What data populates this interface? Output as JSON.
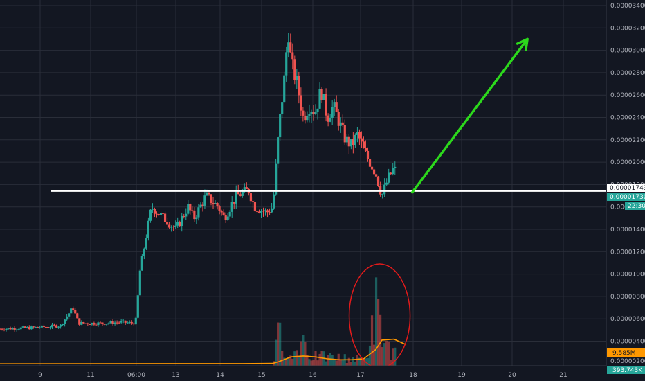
{
  "chart_data": {
    "type": "candlestick",
    "grid": true,
    "price_axis": {
      "position": "right",
      "ticks": [
        "0.00003400",
        "0.00003200",
        "0.00003000",
        "0.00002800",
        "0.00002600",
        "0.00002400",
        "0.00002200",
        "0.00002000",
        "0.00001800",
        "0.00001600",
        "0.00001400",
        "0.00001200",
        "0.00001000",
        "0.00000800",
        "0.00000600",
        "0.00000400"
      ]
    },
    "time_axis": {
      "ticks": [
        "9",
        "11",
        "06:00",
        "13",
        "14",
        "15",
        "16",
        "17",
        "18",
        "19",
        "20",
        "21"
      ]
    },
    "price_path": [
      [
        0,
        5.1e-06
      ],
      [
        0.05,
        5.2e-06
      ],
      [
        0.08,
        5.3e-06
      ],
      [
        0.1,
        5.4e-06
      ],
      [
        0.12,
        7e-06
      ],
      [
        0.13,
        5.6e-06
      ],
      [
        0.17,
        5.6e-06
      ],
      [
        0.2,
        5.7e-06
      ],
      [
        0.22,
        5.6e-06
      ],
      [
        0.225,
        6e-06
      ],
      [
        0.23,
        1e-05
      ],
      [
        0.24,
        1.3e-05
      ],
      [
        0.25,
        1.6e-05
      ],
      [
        0.27,
        1.5e-05
      ],
      [
        0.29,
        1.4e-05
      ],
      [
        0.31,
        1.6e-05
      ],
      [
        0.32,
        1.5e-05
      ],
      [
        0.34,
        1.7e-05
      ],
      [
        0.36,
        1.6e-05
      ],
      [
        0.37,
        1.5e-05
      ],
      [
        0.39,
        1.7e-05
      ],
      [
        0.41,
        1.75e-05
      ],
      [
        0.42,
        1.6e-05
      ],
      [
        0.44,
        1.55e-05
      ],
      [
        0.45,
        1.6e-05
      ],
      [
        0.46,
        2.3e-05
      ],
      [
        0.47,
        2.8e-05
      ],
      [
        0.475,
        3.2e-05
      ],
      [
        0.48,
        2.9e-05
      ],
      [
        0.49,
        2.7e-05
      ],
      [
        0.5,
        2.4e-05
      ],
      [
        0.51,
        2.5e-05
      ],
      [
        0.52,
        2.45e-05
      ],
      [
        0.53,
        2.65e-05
      ],
      [
        0.54,
        2.4e-05
      ],
      [
        0.55,
        2.5e-05
      ],
      [
        0.56,
        2.35e-05
      ],
      [
        0.57,
        2.2e-05
      ],
      [
        0.58,
        2.15e-05
      ],
      [
        0.59,
        2.25e-05
      ],
      [
        0.6,
        2.1e-05
      ],
      [
        0.61,
        2e-05
      ],
      [
        0.62,
        1.9e-05
      ],
      [
        0.63,
        1.7e-05
      ],
      [
        0.64,
        1.85e-05
      ],
      [
        0.65,
        1.95e-05
      ],
      [
        0.66,
        1.8e-05
      ],
      [
        0.67,
        1.75e-05
      ],
      [
        0.68,
        1.73e-05
      ]
    ],
    "volume_path": [
      [
        0,
        0.0
      ],
      [
        0.45,
        0.0
      ],
      [
        0.46,
        0.5
      ],
      [
        0.48,
        0.1
      ],
      [
        0.49,
        0.25
      ],
      [
        0.5,
        0.45
      ],
      [
        0.51,
        0.15
      ],
      [
        0.6,
        0.1
      ],
      [
        0.61,
        0.3
      ],
      [
        0.62,
        0.9
      ],
      [
        0.63,
        0.45
      ],
      [
        0.64,
        0.3
      ],
      [
        0.65,
        0.15
      ],
      [
        0.66,
        0.45
      ],
      [
        0.67,
        0.1
      ],
      [
        0.68,
        0.0
      ]
    ],
    "volume_ma_path": [
      [
        0,
        0.006
      ],
      [
        0.4,
        0.008
      ],
      [
        0.45,
        0.01
      ],
      [
        0.46,
        0.03
      ],
      [
        0.48,
        0.08
      ],
      [
        0.5,
        0.09
      ],
      [
        0.52,
        0.08
      ],
      [
        0.54,
        0.06
      ],
      [
        0.56,
        0.05
      ],
      [
        0.58,
        0.05
      ],
      [
        0.6,
        0.06
      ],
      [
        0.62,
        0.16
      ],
      [
        0.63,
        0.26
      ],
      [
        0.65,
        0.27
      ],
      [
        0.67,
        0.21
      ]
    ],
    "horizontal_line_price": 1.743e-05,
    "projection": {
      "from": [
        0.68,
        1.73e-05
      ],
      "to": [
        0.87,
        3.1e-05
      ]
    },
    "tags": {
      "line_price": "0.00001743",
      "last_price": "0.00001730",
      "countdown": "22:30",
      "volume_ma": "9.585M",
      "volume_axis_low": "0.00000200",
      "volume_last": "393.743K"
    },
    "colors": {
      "background": "#131722",
      "grid": "#2a2e39",
      "up": "#26a69a",
      "down": "#ef5350",
      "volume_ma": "#ff9800",
      "arrow": "#2cd81c",
      "circle": "#e21b1b",
      "line": "#ffffff"
    }
  }
}
